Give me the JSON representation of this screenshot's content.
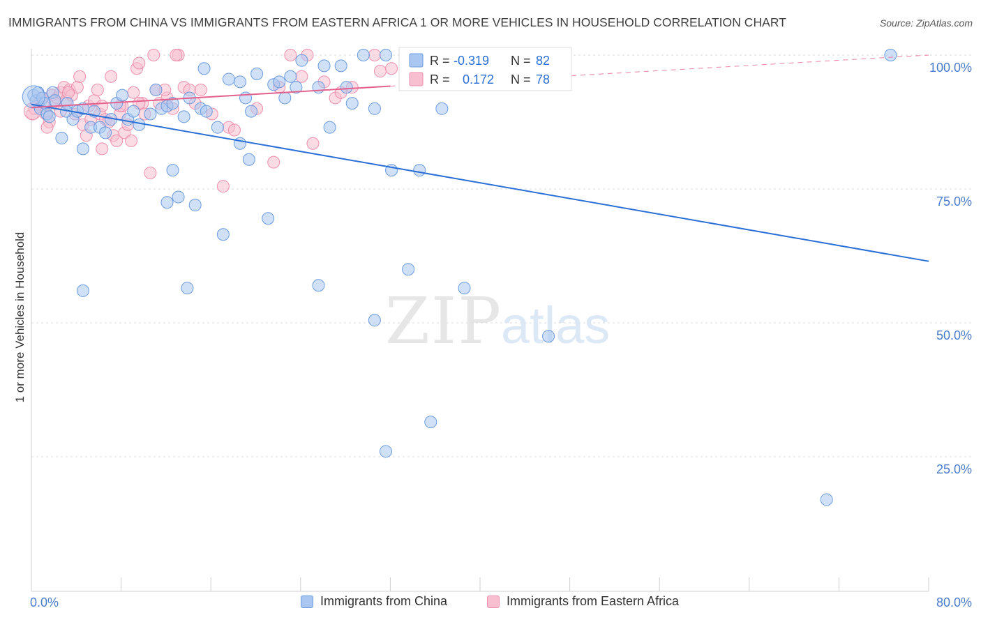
{
  "title": "IMMIGRANTS FROM CHINA VS IMMIGRANTS FROM EASTERN AFRICA 1 OR MORE VEHICLES IN HOUSEHOLD CORRELATION CHART",
  "source": "Source: ZipAtlas.com",
  "watermark": {
    "zip": "ZIP",
    "atlas": "atlas"
  },
  "colors": {
    "china_fill": "#a9c7f0",
    "china_stroke": "#6a9be0",
    "china_line": "#2a6fd6",
    "africa_fill": "#f7bfd0",
    "africa_stroke": "#ee8fad",
    "africa_line": "#e4608d",
    "axis_text": "#4a7cc9",
    "grid": "#d8d8d8"
  },
  "legend": {
    "r_label": "R =",
    "n_label": "N =",
    "series": [
      {
        "name": "Immigrants from China",
        "r": "-0.319",
        "n": "82"
      },
      {
        "name": "Immigrants from Eastern Africa",
        "r": "0.172",
        "n": "78"
      }
    ]
  },
  "chart_data": {
    "type": "scatter",
    "title": "IMMIGRANTS FROM CHINA VS IMMIGRANTS FROM EASTERN AFRICA 1 OR MORE VEHICLES IN HOUSEHOLD CORRELATION CHART",
    "xlabel": "",
    "ylabel": "1 or more Vehicles in Household",
    "xlim": [
      0,
      80
    ],
    "ylim": [
      0,
      105
    ],
    "x_tick_labels": [
      "0.0%",
      "80.0%"
    ],
    "y_ticks": [
      25,
      50,
      75,
      100
    ],
    "y_tick_labels": [
      "25.0%",
      "50.0%",
      "75.0%",
      "100.0%"
    ],
    "grid": true,
    "series": [
      {
        "name": "Immigrants from China",
        "r": -0.319,
        "n": 82,
        "trend": {
          "x0": 0,
          "y0": 90.8,
          "x1": 80,
          "y1": 61.5,
          "dashed_until": null
        },
        "points": [
          [
            0.2,
            92.5
          ],
          [
            0.4,
            91.5
          ],
          [
            0.6,
            93
          ],
          [
            0.8,
            90
          ],
          [
            1.0,
            92
          ],
          [
            1.2,
            91
          ],
          [
            1.4,
            89
          ],
          [
            1.6,
            88.5
          ],
          [
            1.9,
            93
          ],
          [
            2.1,
            91.5
          ],
          [
            2.7,
            84.5
          ],
          [
            3.2,
            91
          ],
          [
            3.7,
            88
          ],
          [
            4.1,
            89.5
          ],
          [
            4.6,
            90
          ],
          [
            5.3,
            86.5
          ],
          [
            5.6,
            89.5
          ],
          [
            6.1,
            86.5
          ],
          [
            6.6,
            85.5
          ],
          [
            7.1,
            88
          ],
          [
            7.6,
            91
          ],
          [
            8.1,
            92.5
          ],
          [
            8.6,
            88
          ],
          [
            9.1,
            89.5
          ],
          [
            9.6,
            87
          ],
          [
            10.6,
            89
          ],
          [
            11.1,
            93.5
          ],
          [
            11.6,
            90
          ],
          [
            12.1,
            90.5
          ],
          [
            12.6,
            91
          ],
          [
            13.6,
            88.5
          ],
          [
            14.1,
            92
          ],
          [
            15.1,
            90
          ],
          [
            15.6,
            89.5
          ],
          [
            15.4,
            97.5
          ],
          [
            16.6,
            86.5
          ],
          [
            17.6,
            95.5
          ],
          [
            18.6,
            95
          ],
          [
            19.1,
            92
          ],
          [
            19.6,
            89.5
          ],
          [
            20.1,
            96.5
          ],
          [
            21.6,
            94.5
          ],
          [
            22.1,
            95
          ],
          [
            23.1,
            96
          ],
          [
            22.6,
            92
          ],
          [
            23.6,
            94
          ],
          [
            24.1,
            99
          ],
          [
            25.6,
            94
          ],
          [
            26.1,
            98
          ],
          [
            27.6,
            98
          ],
          [
            28.1,
            94
          ],
          [
            28.6,
            91
          ],
          [
            29.6,
            100
          ],
          [
            30.6,
            90
          ],
          [
            31.6,
            100
          ],
          [
            32.1,
            78.5
          ],
          [
            34.6,
            78.5
          ],
          [
            36.6,
            90
          ],
          [
            4.6,
            82.5
          ],
          [
            12.6,
            78.5
          ],
          [
            12.1,
            72.5
          ],
          [
            13.1,
            73.5
          ],
          [
            14.6,
            72
          ],
          [
            17.1,
            66.5
          ],
          [
            18.6,
            83.5
          ],
          [
            19.4,
            80.5
          ],
          [
            21.1,
            69.5
          ],
          [
            26.6,
            86.5
          ],
          [
            4.6,
            56
          ],
          [
            13.9,
            56.5
          ],
          [
            25.6,
            57
          ],
          [
            33.6,
            60
          ],
          [
            38.6,
            56.5
          ],
          [
            30.6,
            50.5
          ],
          [
            46.1,
            47.5
          ],
          [
            35.6,
            31.5
          ],
          [
            31.6,
            26
          ],
          [
            70.9,
            17
          ],
          [
            76.6,
            100
          ],
          [
            3.1,
            89.5
          ]
        ]
      },
      {
        "name": "Immigrants from Eastern Africa",
        "r": 0.172,
        "n": 78,
        "trend": {
          "x0": 0,
          "y0": 90.2,
          "x1": 32,
          "y1": 94.2,
          "dashed_until": [
            80,
            100
          ]
        },
        "points": [
          [
            0.1,
            89
          ],
          [
            0.3,
            90
          ],
          [
            0.6,
            91
          ],
          [
            0.9,
            92
          ],
          [
            1.1,
            90.5
          ],
          [
            1.3,
            89
          ],
          [
            1.6,
            87.5
          ],
          [
            1.8,
            92.5
          ],
          [
            2.1,
            91
          ],
          [
            2.3,
            92
          ],
          [
            2.6,
            93
          ],
          [
            2.9,
            94
          ],
          [
            3.1,
            91.5
          ],
          [
            3.4,
            93.5
          ],
          [
            3.6,
            92.5
          ],
          [
            3.9,
            89
          ],
          [
            4.1,
            94
          ],
          [
            4.3,
            96
          ],
          [
            4.6,
            87
          ],
          [
            4.9,
            85
          ],
          [
            5.1,
            90.5
          ],
          [
            5.3,
            88
          ],
          [
            5.6,
            91.5
          ],
          [
            5.9,
            93.5
          ],
          [
            6.1,
            89
          ],
          [
            6.3,
            90.5
          ],
          [
            6.6,
            88
          ],
          [
            6.9,
            87.5
          ],
          [
            7.1,
            96
          ],
          [
            7.3,
            85
          ],
          [
            7.6,
            84
          ],
          [
            7.9,
            89
          ],
          [
            8.1,
            90.5
          ],
          [
            8.3,
            85.5
          ],
          [
            8.6,
            87
          ],
          [
            8.9,
            84
          ],
          [
            9.1,
            93
          ],
          [
            9.4,
            97.5
          ],
          [
            9.6,
            98.5
          ],
          [
            9.9,
            91
          ],
          [
            10.1,
            89
          ],
          [
            10.6,
            78
          ],
          [
            11.1,
            93.5
          ],
          [
            11.4,
            91
          ],
          [
            12.1,
            92
          ],
          [
            12.6,
            90
          ],
          [
            13.1,
            100
          ],
          [
            13.6,
            94
          ],
          [
            14.1,
            93.5
          ],
          [
            14.6,
            91
          ],
          [
            15.1,
            93.5
          ],
          [
            16.1,
            89
          ],
          [
            17.1,
            75.5
          ],
          [
            17.6,
            86.5
          ],
          [
            18.1,
            86
          ],
          [
            20.1,
            90
          ],
          [
            21.6,
            80
          ],
          [
            22.1,
            94
          ],
          [
            23.1,
            100
          ],
          [
            24.1,
            96
          ],
          [
            24.6,
            100
          ],
          [
            25.1,
            83.5
          ],
          [
            26.1,
            95
          ],
          [
            27.1,
            92
          ],
          [
            27.6,
            93
          ],
          [
            28.6,
            94
          ],
          [
            30.6,
            100
          ],
          [
            31.1,
            97
          ],
          [
            32.1,
            97.5
          ],
          [
            10.9,
            100
          ],
          [
            9.6,
            91
          ],
          [
            12.9,
            100
          ],
          [
            1.4,
            86.5
          ],
          [
            3.3,
            93
          ],
          [
            6.3,
            82.5
          ],
          [
            7.9,
            90.5
          ],
          [
            11.9,
            93.5
          ],
          [
            2.6,
            89.5
          ]
        ]
      }
    ]
  }
}
